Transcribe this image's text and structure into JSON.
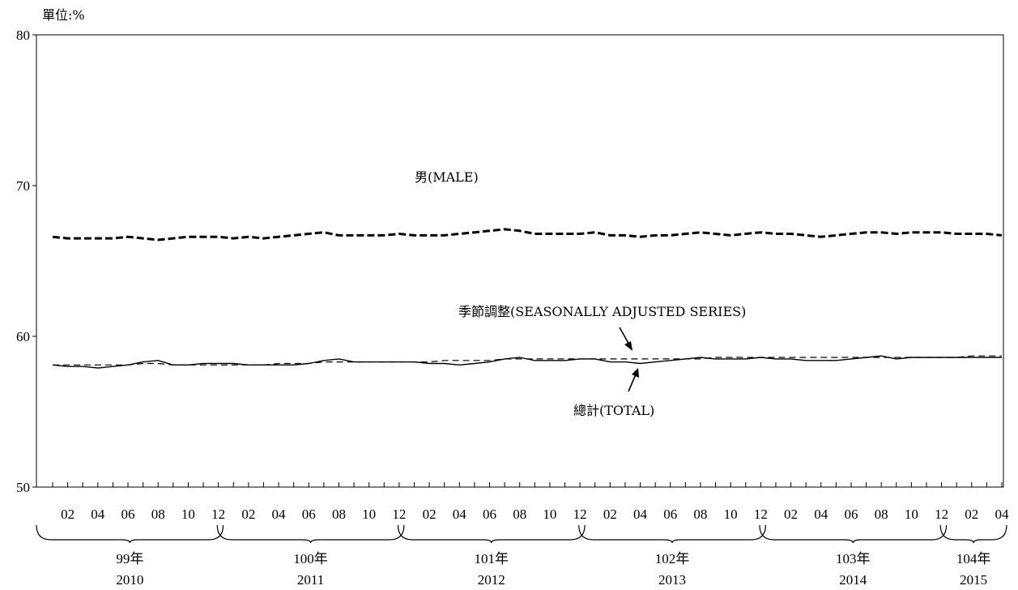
{
  "chart_data": {
    "type": "line",
    "unit_label": "單位:%",
    "ylim": [
      50,
      80
    ],
    "yticks": [
      "50",
      "60",
      "70",
      "80"
    ],
    "month_labels": [
      "02",
      "04",
      "06",
      "08",
      "10",
      "12",
      "02",
      "04",
      "06",
      "08",
      "10",
      "12",
      "02",
      "04",
      "06",
      "08",
      "10",
      "12",
      "02",
      "04",
      "06",
      "08",
      "10",
      "12",
      "02",
      "04",
      "06",
      "08",
      "10",
      "12",
      "02",
      "04"
    ],
    "year_groups": [
      {
        "roc": "99年",
        "ad": "2010"
      },
      {
        "roc": "100年",
        "ad": "2011"
      },
      {
        "roc": "101年",
        "ad": "2012"
      },
      {
        "roc": "102年",
        "ad": "2013"
      },
      {
        "roc": "103年",
        "ad": "2014"
      },
      {
        "roc": "104年",
        "ad": "2015"
      }
    ],
    "x": [
      "2010-01",
      "2010-02",
      "2010-03",
      "2010-04",
      "2010-05",
      "2010-06",
      "2010-07",
      "2010-08",
      "2010-09",
      "2010-10",
      "2010-11",
      "2010-12",
      "2011-01",
      "2011-02",
      "2011-03",
      "2011-04",
      "2011-05",
      "2011-06",
      "2011-07",
      "2011-08",
      "2011-09",
      "2011-10",
      "2011-11",
      "2011-12",
      "2012-01",
      "2012-02",
      "2012-03",
      "2012-04",
      "2012-05",
      "2012-06",
      "2012-07",
      "2012-08",
      "2012-09",
      "2012-10",
      "2012-11",
      "2012-12",
      "2013-01",
      "2013-02",
      "2013-03",
      "2013-04",
      "2013-05",
      "2013-06",
      "2013-07",
      "2013-08",
      "2013-09",
      "2013-10",
      "2013-11",
      "2013-12",
      "2014-01",
      "2014-02",
      "2014-03",
      "2014-04",
      "2014-05",
      "2014-06",
      "2014-07",
      "2014-08",
      "2014-09",
      "2014-10",
      "2014-11",
      "2014-12",
      "2015-01",
      "2015-02",
      "2015-03",
      "2015-04"
    ],
    "series": [
      {
        "name": "男(MALE)",
        "style": "dashed",
        "color": "#000000",
        "values": [
          66.6,
          66.5,
          66.5,
          66.5,
          66.5,
          66.6,
          66.5,
          66.4,
          66.5,
          66.6,
          66.6,
          66.6,
          66.5,
          66.6,
          66.5,
          66.6,
          66.7,
          66.8,
          66.9,
          66.7,
          66.7,
          66.7,
          66.7,
          66.8,
          66.7,
          66.7,
          66.7,
          66.8,
          66.9,
          67.0,
          67.1,
          67.0,
          66.8,
          66.8,
          66.8,
          66.8,
          66.9,
          66.7,
          66.7,
          66.6,
          66.7,
          66.7,
          66.8,
          66.9,
          66.8,
          66.7,
          66.8,
          66.9,
          66.8,
          66.8,
          66.7,
          66.6,
          66.7,
          66.8,
          66.9,
          66.9,
          66.8,
          66.9,
          66.9,
          66.9,
          66.8,
          66.8,
          66.8,
          66.7
        ]
      },
      {
        "name": "總計(TOTAL)",
        "style": "solid",
        "color": "#000000",
        "values": [
          58.1,
          58.0,
          58.0,
          57.9,
          58.0,
          58.1,
          58.3,
          58.4,
          58.1,
          58.1,
          58.2,
          58.2,
          58.2,
          58.1,
          58.1,
          58.1,
          58.1,
          58.2,
          58.4,
          58.5,
          58.3,
          58.3,
          58.3,
          58.3,
          58.3,
          58.2,
          58.2,
          58.1,
          58.2,
          58.3,
          58.5,
          58.6,
          58.4,
          58.4,
          58.4,
          58.5,
          58.5,
          58.3,
          58.3,
          58.2,
          58.3,
          58.4,
          58.5,
          58.6,
          58.5,
          58.5,
          58.5,
          58.6,
          58.5,
          58.5,
          58.4,
          58.4,
          58.4,
          58.5,
          58.6,
          58.7,
          58.5,
          58.6,
          58.6,
          58.6,
          58.6,
          58.6,
          58.6,
          58.6
        ]
      },
      {
        "name": "季節調整(SEASONALLY ADJUSTED SERIES)",
        "style": "thin-dashed",
        "color": "#000000",
        "values": [
          58.1,
          58.1,
          58.1,
          58.1,
          58.1,
          58.1,
          58.2,
          58.2,
          58.1,
          58.1,
          58.1,
          58.1,
          58.1,
          58.1,
          58.1,
          58.2,
          58.2,
          58.2,
          58.3,
          58.3,
          58.3,
          58.3,
          58.3,
          58.3,
          58.3,
          58.3,
          58.4,
          58.4,
          58.4,
          58.4,
          58.5,
          58.5,
          58.5,
          58.5,
          58.5,
          58.5,
          58.5,
          58.5,
          58.5,
          58.5,
          58.5,
          58.5,
          58.5,
          58.5,
          58.6,
          58.6,
          58.6,
          58.6,
          58.6,
          58.6,
          58.6,
          58.6,
          58.6,
          58.6,
          58.6,
          58.6,
          58.6,
          58.6,
          58.6,
          58.6,
          58.6,
          58.7,
          58.7,
          58.7
        ]
      }
    ],
    "annotations": {
      "male": "男(MALE)",
      "seasonal": "季節調整(SEASONALLY ADJUSTED SERIES)",
      "total": "總計(TOTAL)"
    },
    "grid": false,
    "legend": "none"
  }
}
